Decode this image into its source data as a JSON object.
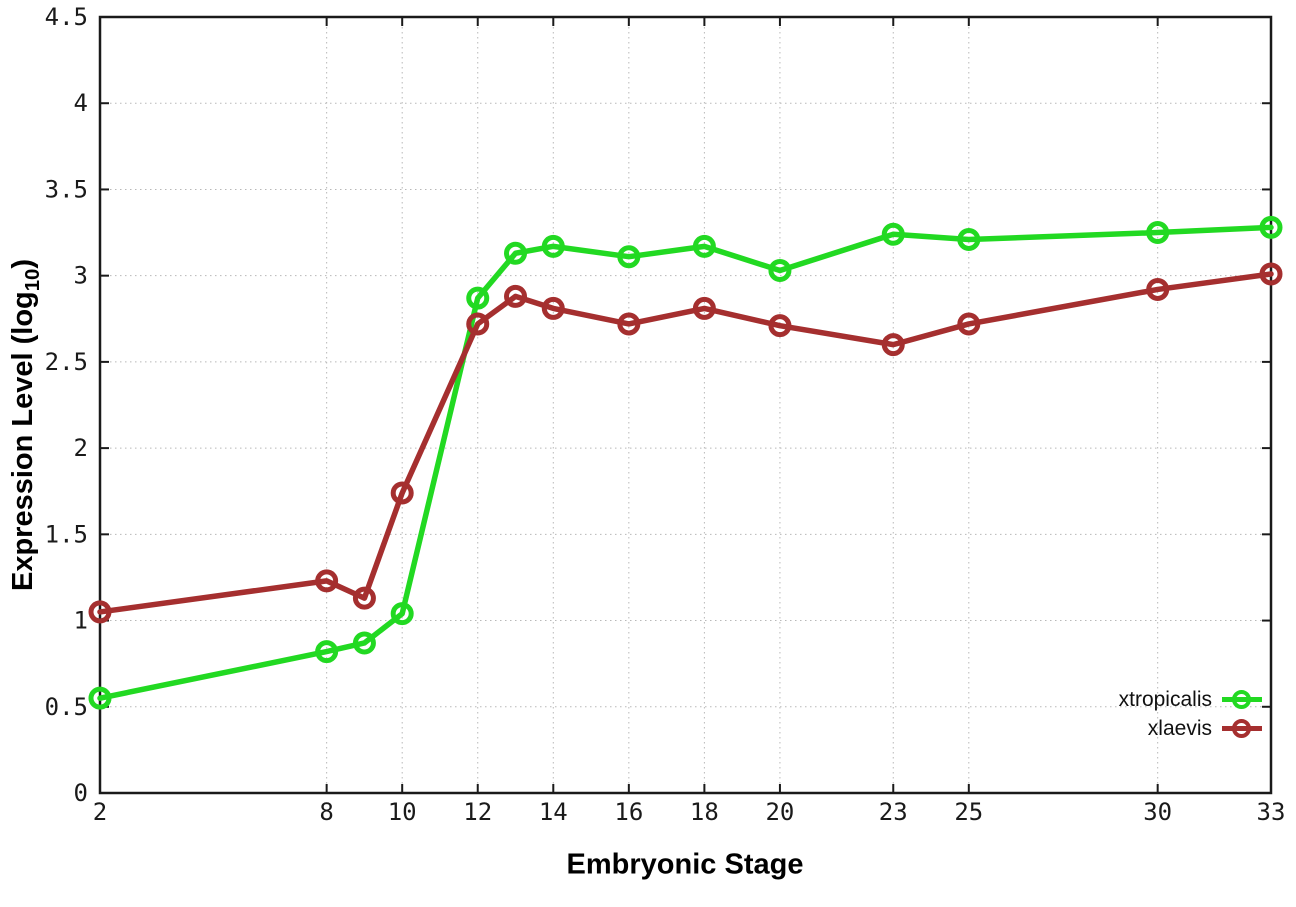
{
  "chart_data": {
    "type": "line",
    "title": "",
    "xlabel": "Embryonic Stage",
    "ylabel": "Expression Level (log10)",
    "ylabel_parts": {
      "prefix": "Expression Level (log",
      "sub": "10",
      "suffix": ")"
    },
    "xlim": [
      2,
      33
    ],
    "ylim": [
      0,
      4.5
    ],
    "xticks": [
      2,
      8,
      10,
      12,
      14,
      16,
      18,
      20,
      23,
      25,
      30,
      33
    ],
    "xtick_labels": [
      "2",
      "8",
      "10",
      "12",
      "14",
      "16",
      "18",
      "20",
      "23",
      "25",
      "30",
      "33"
    ],
    "yticks": [
      0,
      0.5,
      1,
      1.5,
      2,
      2.5,
      3,
      3.5,
      4,
      4.5
    ],
    "ytick_labels": [
      "0",
      "0.5",
      "1",
      "1.5",
      "2",
      "2.5",
      "3",
      "3.5",
      "4",
      "4.5"
    ],
    "grid": true,
    "legend_position": "inside-bottom-right",
    "x": [
      2,
      8,
      9,
      10,
      12,
      13,
      14,
      16,
      18,
      20,
      23,
      25,
      30,
      33
    ],
    "series": [
      {
        "name": "xtropicalis",
        "color": "#22d922",
        "marker": "open-circle",
        "values": [
          0.55,
          0.82,
          0.87,
          1.04,
          2.87,
          3.13,
          3.17,
          3.11,
          3.17,
          3.03,
          3.24,
          3.21,
          3.25,
          3.28
        ]
      },
      {
        "name": "xlaevis",
        "color": "#a52f2f",
        "marker": "open-circle",
        "values": [
          1.05,
          1.23,
          1.13,
          1.74,
          2.72,
          2.88,
          2.81,
          2.72,
          2.81,
          2.71,
          2.6,
          2.72,
          2.92,
          3.01
        ]
      }
    ],
    "colors": {
      "border": "#1a1a1a",
      "grid": "#b8b8b8",
      "tick_text": "#1a1a1a"
    }
  }
}
